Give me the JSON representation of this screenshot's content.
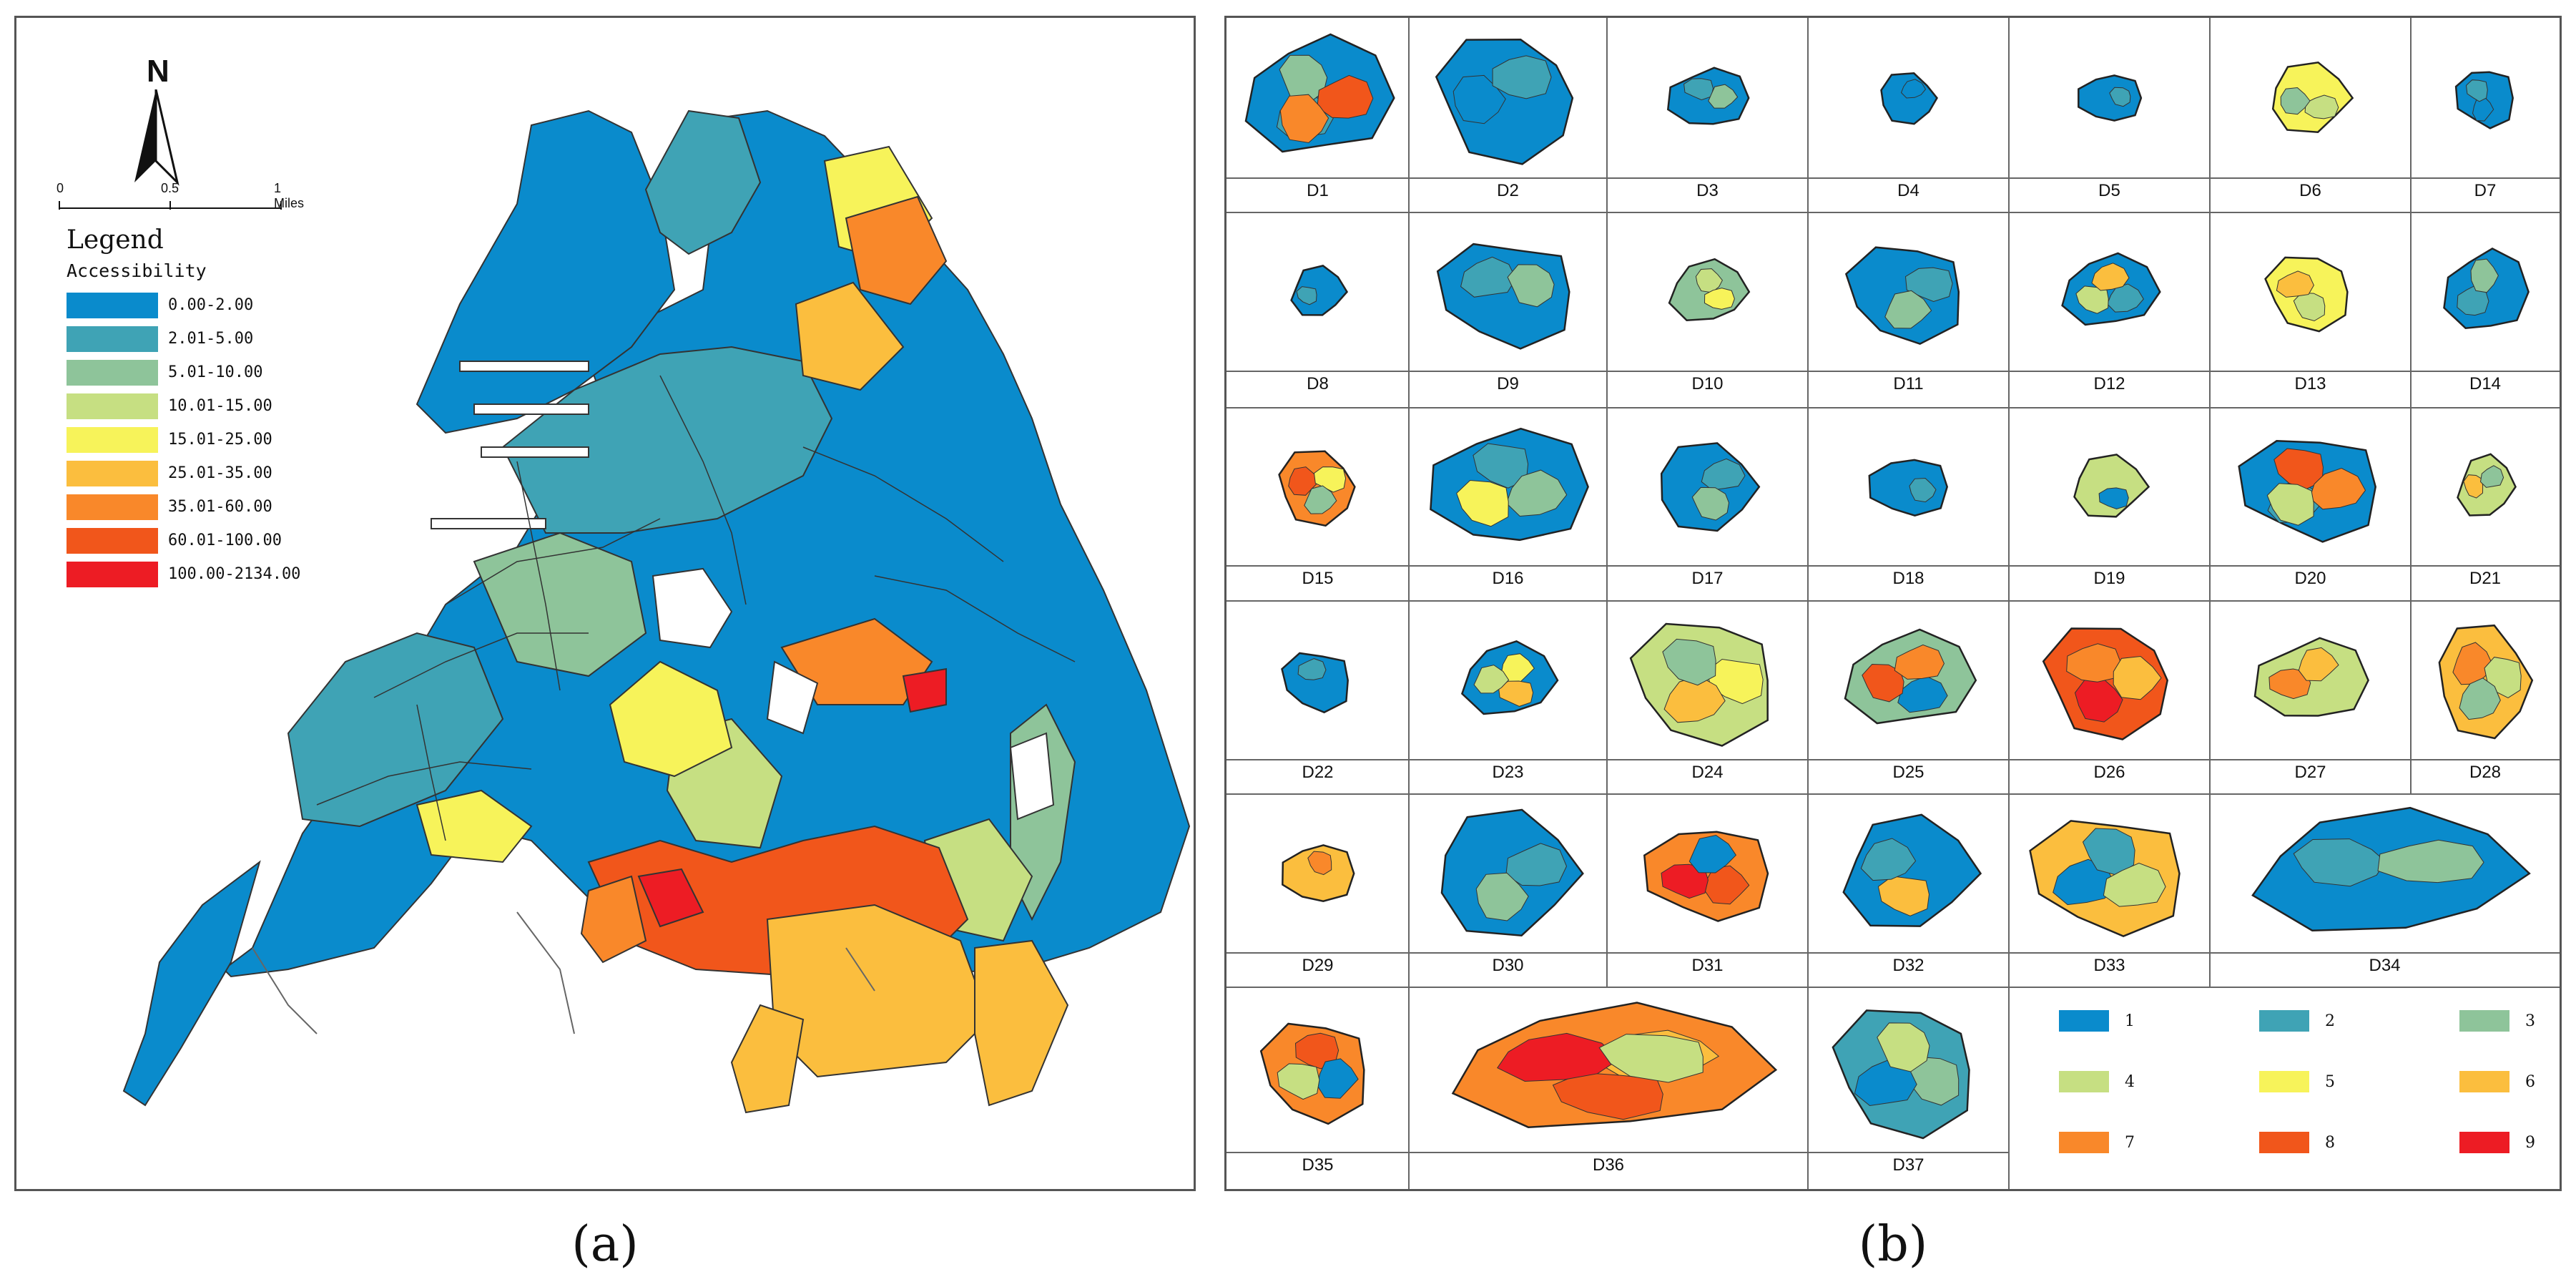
{
  "panel_a": {
    "north_label": "N",
    "scale": {
      "ticks": [
        "0",
        "0.5",
        "1 Miles"
      ]
    },
    "legend": {
      "title": "Legend",
      "subtitle": "Accessibility",
      "classes": [
        {
          "label": "0.00-2.00",
          "color": "#0a8bcc"
        },
        {
          "label": "2.01-5.00",
          "color": "#3fa3b5"
        },
        {
          "label": "5.01-10.00",
          "color": "#8ec49a"
        },
        {
          "label": "10.01-15.00",
          "color": "#c6df82"
        },
        {
          "label": "15.01-25.00",
          "color": "#f7f35a"
        },
        {
          "label": "25.01-35.00",
          "color": "#fbbe3e"
        },
        {
          "label": "35.01-60.00",
          "color": "#f9882a"
        },
        {
          "label": "60.01-100.00",
          "color": "#f1561b"
        },
        {
          "label": "100.00-2134.00",
          "color": "#ed1c24"
        }
      ]
    },
    "caption": "(a)"
  },
  "panel_b": {
    "districts": [
      "D1",
      "D2",
      "D3",
      "D4",
      "D5",
      "D6",
      "D7",
      "D8",
      "D9",
      "D10",
      "D11",
      "D12",
      "D13",
      "D14",
      "D15",
      "D16",
      "D17",
      "D18",
      "D19",
      "D20",
      "D21",
      "D22",
      "D23",
      "D24",
      "D25",
      "D26",
      "D27",
      "D28",
      "D29",
      "D30",
      "D31",
      "D32",
      "D33",
      "D34",
      "D35",
      "D36",
      "D37"
    ],
    "class_legend": [
      {
        "label": "1",
        "color": "#0a8bcc"
      },
      {
        "label": "2",
        "color": "#3fa3b5"
      },
      {
        "label": "3",
        "color": "#8ec49a"
      },
      {
        "label": "4",
        "color": "#c6df82"
      },
      {
        "label": "5",
        "color": "#f7f35a"
      },
      {
        "label": "6",
        "color": "#fbbe3e"
      },
      {
        "label": "7",
        "color": "#f9882a"
      },
      {
        "label": "8",
        "color": "#f1561b"
      },
      {
        "label": "9",
        "color": "#ed1c24"
      }
    ],
    "caption": "(b)"
  }
}
